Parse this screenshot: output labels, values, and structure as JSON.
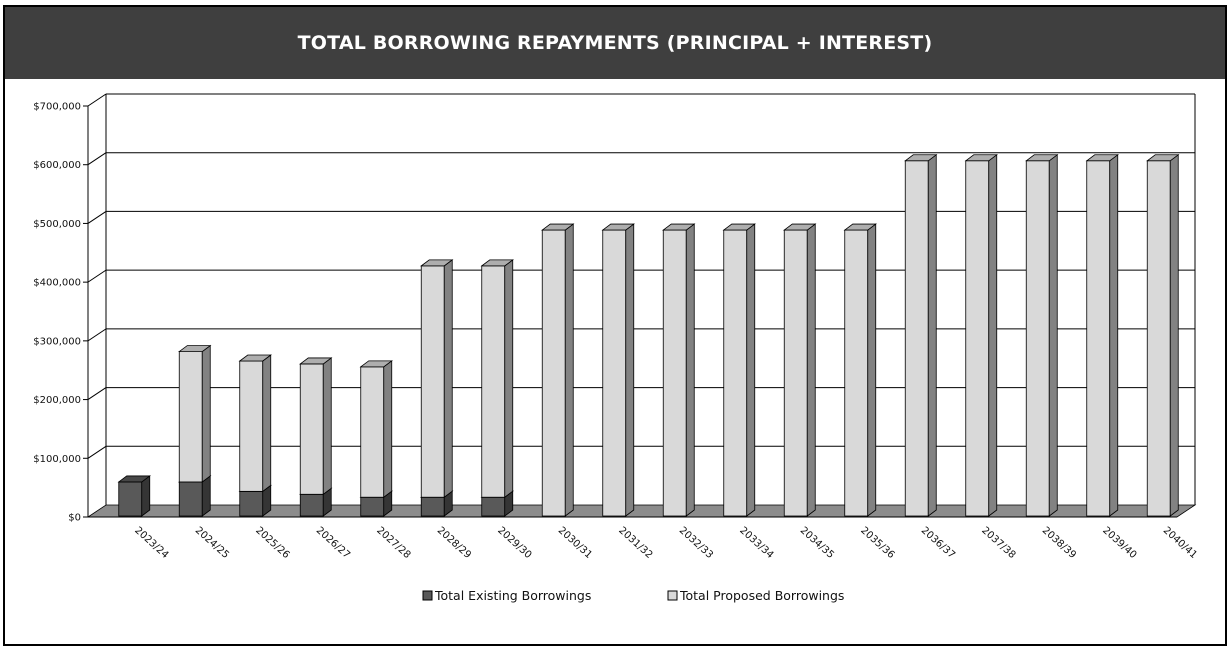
{
  "chart_data": {
    "type": "bar",
    "stacked": true,
    "three_d": true,
    "title": "TOTAL BORROWING REPAYMENTS (PRINCIPAL + INTEREST)",
    "xlabel": "",
    "ylabel": "",
    "ylim": [
      0,
      700000
    ],
    "yticks": [
      0,
      100000,
      200000,
      300000,
      400000,
      500000,
      600000,
      700000
    ],
    "ytick_labels": [
      "$0",
      "$100,000",
      "$200,000",
      "$300,000",
      "$400,000",
      "$500,000",
      "$600,000",
      "$700,000"
    ],
    "grid": true,
    "legend": "bottom",
    "categories": [
      "2023/24",
      "2024/25",
      "2025/26",
      "2026/27",
      "2027/28",
      "2028/29",
      "2029/30",
      "2030/31",
      "2031/32",
      "2032/33",
      "2033/34",
      "2034/35",
      "2035/36",
      "2036/37",
      "2037/38",
      "2038/39",
      "2039/40",
      "2040/41"
    ],
    "series": [
      {
        "name": "Total Existing Borrowings",
        "color": "#595959",
        "values": [
          58000,
          58000,
          42000,
          37000,
          32000,
          32000,
          32000,
          0,
          0,
          0,
          0,
          0,
          0,
          0,
          0,
          0,
          0,
          0
        ]
      },
      {
        "name": "Total Proposed Borrowings",
        "color": "#d9d9d9",
        "values": [
          0,
          222000,
          222000,
          222000,
          222000,
          394000,
          394000,
          487000,
          487000,
          487000,
          487000,
          487000,
          487000,
          605000,
          605000,
          605000,
          605000,
          605000
        ]
      }
    ]
  }
}
